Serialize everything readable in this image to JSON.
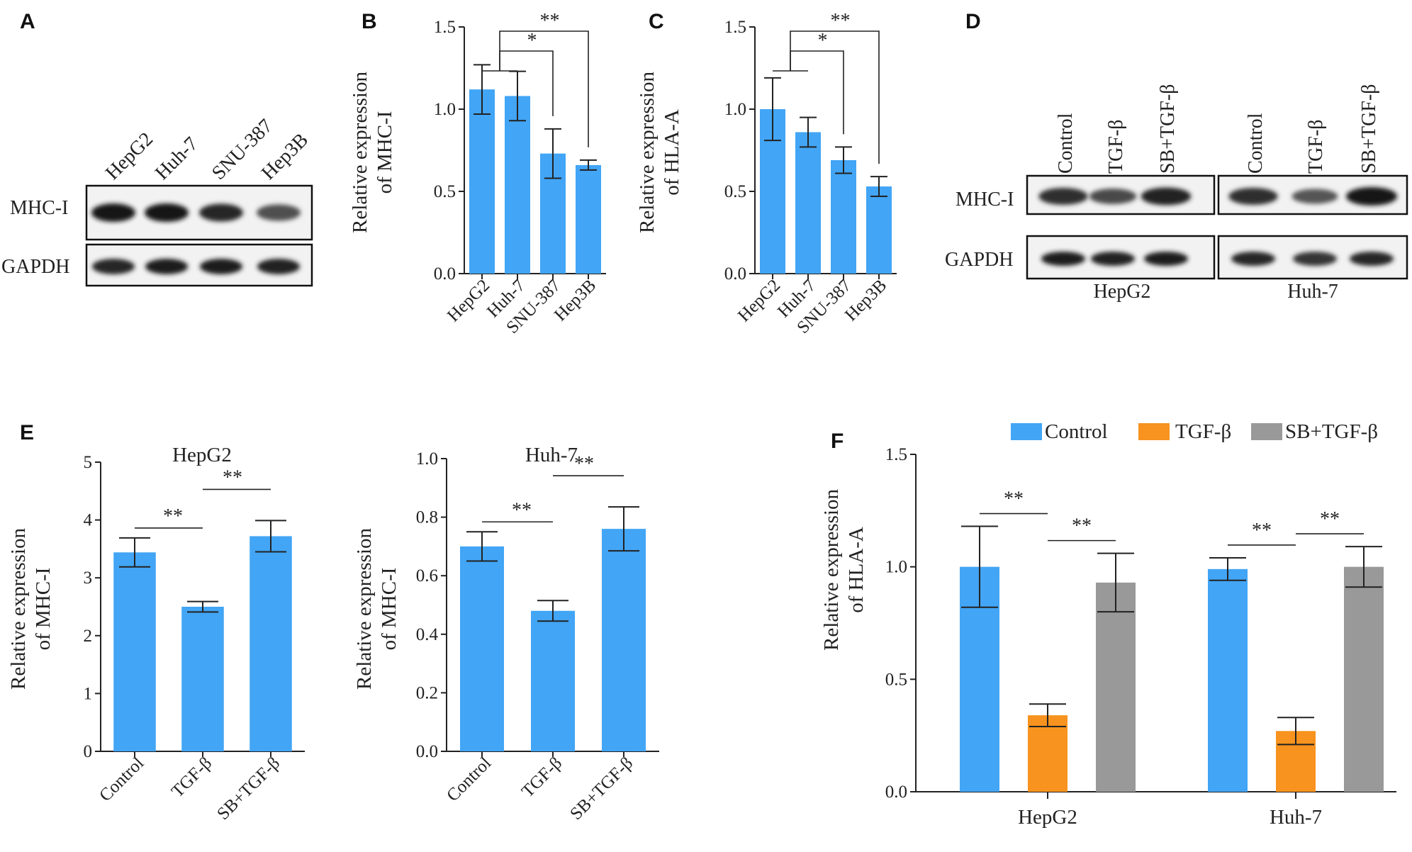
{
  "panels": {
    "A": {
      "label": "A",
      "lanes": [
        "HepG2",
        "Huh-7",
        "SNU-387",
        "Hep3B"
      ],
      "rows": [
        {
          "label": "MHC-I",
          "intensity": [
            1.0,
            1.0,
            0.85,
            0.55
          ]
        },
        {
          "label": "GAPDH",
          "intensity": [
            0.85,
            0.95,
            0.95,
            0.9
          ]
        }
      ]
    },
    "D": {
      "label": "D",
      "lanes": [
        "Control",
        "TGF-β",
        "SB+TGF-β"
      ],
      "groups": [
        "HepG2",
        "Huh-7"
      ],
      "rows": [
        {
          "label": "MHC-I",
          "intensity": [
            [
              0.8,
              0.6,
              0.9
            ],
            [
              0.8,
              0.5,
              1.0
            ]
          ]
        },
        {
          "label": "GAPDH",
          "intensity": [
            [
              0.95,
              0.9,
              0.95
            ],
            [
              0.85,
              0.75,
              0.85
            ]
          ]
        }
      ]
    }
  },
  "colors": {
    "control": "#42a5f5",
    "tgf": "#f7931e",
    "sb": "#999999"
  },
  "chart_data": [
    {
      "id": "B",
      "label": "B",
      "type": "bar",
      "title": "",
      "ylabel": [
        "Relative expression",
        "of MHC-I"
      ],
      "categories": [
        "HepG2",
        "Huh-7",
        "SNU-387",
        "Hep3B"
      ],
      "values": [
        1.12,
        1.08,
        0.73,
        0.66
      ],
      "errors": [
        0.15,
        0.15,
        0.15,
        0.03
      ],
      "ylim": [
        0,
        1.5
      ],
      "yticks": [
        "0.0",
        "0.5",
        "1.0",
        "1.5"
      ],
      "significance": [
        {
          "from": [
            0,
            1
          ],
          "to": 2,
          "label": "*"
        },
        {
          "from": [
            0,
            1
          ],
          "to": 3,
          "label": "**"
        }
      ],
      "grid": false,
      "legend": "none"
    },
    {
      "id": "C",
      "label": "C",
      "type": "bar",
      "title": "",
      "ylabel": [
        "Relative expression",
        "of HLA-A"
      ],
      "categories": [
        "HepG2",
        "Huh-7",
        "SNU-387",
        "Hep3B"
      ],
      "values": [
        1.0,
        0.86,
        0.69,
        0.53
      ],
      "errors": [
        0.19,
        0.09,
        0.08,
        0.06
      ],
      "ylim": [
        0,
        1.5
      ],
      "yticks": [
        "0.0",
        "0.5",
        "1.0",
        "1.5"
      ],
      "significance": [
        {
          "from": [
            0,
            1
          ],
          "to": 2,
          "label": "*"
        },
        {
          "from": [
            0,
            1
          ],
          "to": 3,
          "label": "**"
        }
      ],
      "grid": false,
      "legend": "none"
    },
    {
      "id": "E1",
      "label": "E",
      "type": "bar",
      "title": "HepG2",
      "ylabel": [
        "Relative expression",
        "of MHC-I"
      ],
      "categories": [
        "Control",
        "TGF-β",
        "SB+TGF-β"
      ],
      "values": [
        3.44,
        2.5,
        3.72
      ],
      "errors": [
        0.25,
        0.09,
        0.27
      ],
      "ylim": [
        0,
        5
      ],
      "yticks": [
        "0",
        "1",
        "2",
        "3",
        "4",
        "5"
      ],
      "significance": [
        {
          "pair": [
            0,
            1
          ],
          "label": "**"
        },
        {
          "pair": [
            1,
            2
          ],
          "label": "**"
        }
      ],
      "grid": false,
      "legend": "none"
    },
    {
      "id": "E2",
      "label": "",
      "type": "bar",
      "title": "Huh-7",
      "ylabel": [
        "Relative expression",
        "of MHC-I"
      ],
      "categories": [
        "Control",
        "TGF-β",
        "SB+TGF-β"
      ],
      "values": [
        0.7,
        0.48,
        0.76
      ],
      "errors": [
        0.05,
        0.035,
        0.075
      ],
      "ylim": [
        0,
        1.0
      ],
      "yticks": [
        "0.0",
        "0.2",
        "0.4",
        "0.6",
        "0.8",
        "1.0"
      ],
      "significance": [
        {
          "pair": [
            0,
            1
          ],
          "label": "**"
        },
        {
          "pair": [
            1,
            2
          ],
          "label": "**"
        }
      ],
      "grid": false,
      "legend": "none"
    },
    {
      "id": "F",
      "label": "F",
      "type": "bar",
      "title": "",
      "ylabel": [
        "Relative expression",
        "of HLA-A"
      ],
      "categories": [
        "HepG2",
        "Huh-7"
      ],
      "series": [
        {
          "name": "Control",
          "values": [
            1.0,
            0.99
          ],
          "errors": [
            0.18,
            0.05
          ]
        },
        {
          "name": "TGF-β",
          "values": [
            0.34,
            0.27
          ],
          "errors": [
            0.05,
            0.06
          ]
        },
        {
          "name": "SB+TGF-β",
          "values": [
            0.93,
            1.0
          ],
          "errors": [
            0.13,
            0.09
          ]
        }
      ],
      "ylim": [
        0,
        1.5
      ],
      "yticks": [
        "0.0",
        "0.5",
        "1.0",
        "1.5"
      ],
      "significance": [
        {
          "group": 0,
          "pair": [
            0,
            1
          ],
          "label": "**"
        },
        {
          "group": 0,
          "pair": [
            1,
            2
          ],
          "label": "**"
        },
        {
          "group": 1,
          "pair": [
            0,
            1
          ],
          "label": "**"
        },
        {
          "group": 1,
          "pair": [
            1,
            2
          ],
          "label": "**"
        }
      ],
      "grid": false,
      "legend": "top"
    }
  ]
}
